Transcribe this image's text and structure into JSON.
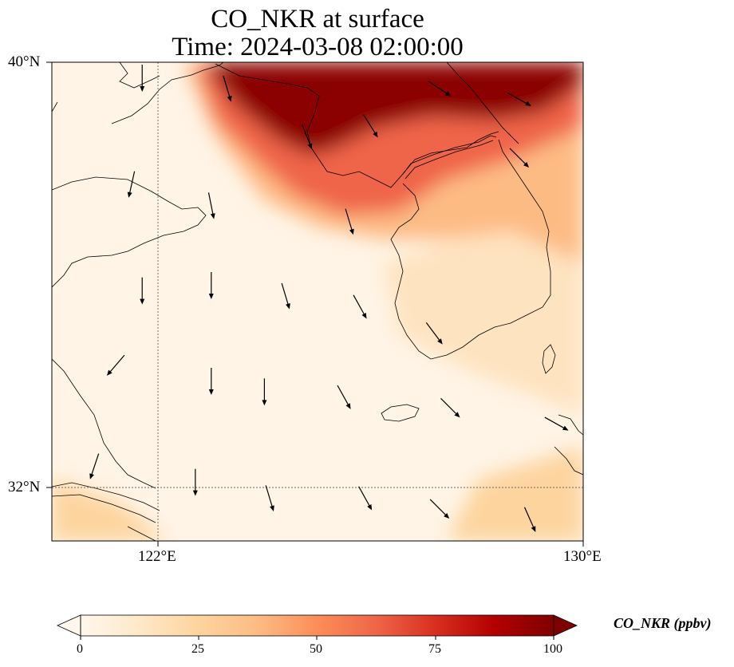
{
  "title": {
    "line1": "CO_NKR at surface",
    "line2": "Time: 2024-03-08 02:00:00"
  },
  "axes": {
    "lat_ticks": [
      "40°N",
      "32°N"
    ],
    "lon_ticks": [
      "122°E",
      "130°E"
    ],
    "lat_range": [
      31,
      40
    ],
    "lon_range": [
      120,
      130
    ],
    "gridlines": "dotted at 122°E and 32°N"
  },
  "colorbar": {
    "label": "CO_NKR (ppbv)",
    "ticks": [
      "0",
      "25",
      "50",
      "75",
      "100"
    ],
    "range": [
      0,
      100
    ],
    "extend": "both",
    "colormap": "OrRd",
    "stops": [
      "#fff7ec",
      "#fee8c8",
      "#fdd49e",
      "#fdbb84",
      "#fc8d59",
      "#ef6548",
      "#d7301f",
      "#b30000",
      "#7f0000"
    ]
  },
  "colors": {
    "coastline": "#000000",
    "wind_arrow": "#000000",
    "high_conc": "#7f0000",
    "background_field": "#fff4e6"
  },
  "chart_data": {
    "type": "heatmap",
    "variable": "CO_NKR",
    "units": "ppbv",
    "level": "surface",
    "time": "2024-03-08 02:00:00",
    "regions": [
      {
        "lon": [
          122.8,
          130
        ],
        "lat": [
          37.5,
          40
        ],
        "value": 100
      },
      {
        "lon": [
          124,
          128
        ],
        "lat": [
          36.5,
          38.5
        ],
        "value": 60
      },
      {
        "lon": [
          127,
          130
        ],
        "lat": [
          35,
          38
        ],
        "value": 30
      },
      {
        "lon": [
          120,
          130
        ],
        "lat": [
          31,
          36
        ],
        "value": 8
      },
      {
        "lon": [
          120,
          122.5
        ],
        "lat": [
          31,
          32.5
        ],
        "value": 25
      },
      {
        "lon": [
          128,
          130
        ],
        "lat": [
          31,
          33
        ],
        "value": 25
      }
    ],
    "wind": {
      "prevailing": "north to north-northwest",
      "vectors": [
        {
          "lon": 121.7,
          "lat": 39.7,
          "u": 0.0,
          "v": -1.0
        },
        {
          "lon": 123.3,
          "lat": 39.5,
          "u": 0.3,
          "v": -1.0
        },
        {
          "lon": 124.8,
          "lat": 38.6,
          "u": 0.4,
          "v": -1.0
        },
        {
          "lon": 126.0,
          "lat": 38.8,
          "u": 0.5,
          "v": -0.8
        },
        {
          "lon": 127.3,
          "lat": 39.5,
          "u": 0.9,
          "v": -0.6
        },
        {
          "lon": 128.8,
          "lat": 39.3,
          "u": 0.9,
          "v": -0.5
        },
        {
          "lon": 128.8,
          "lat": 38.2,
          "u": 0.7,
          "v": -0.7
        },
        {
          "lon": 121.5,
          "lat": 37.7,
          "u": -0.2,
          "v": -0.9
        },
        {
          "lon": 123.0,
          "lat": 37.3,
          "u": 0.2,
          "v": -1.0
        },
        {
          "lon": 125.6,
          "lat": 37.0,
          "u": 0.3,
          "v": -1.0
        },
        {
          "lon": 121.7,
          "lat": 35.7,
          "u": 0.0,
          "v": -1.0
        },
        {
          "lon": 123.0,
          "lat": 35.8,
          "u": 0.0,
          "v": -1.0
        },
        {
          "lon": 124.4,
          "lat": 35.6,
          "u": 0.3,
          "v": -1.0
        },
        {
          "lon": 125.8,
          "lat": 35.4,
          "u": 0.5,
          "v": -0.9
        },
        {
          "lon": 127.2,
          "lat": 34.9,
          "u": 0.6,
          "v": -0.8
        },
        {
          "lon": 121.2,
          "lat": 34.3,
          "u": -0.6,
          "v": -0.7
        },
        {
          "lon": 123.0,
          "lat": 34.0,
          "u": 0.0,
          "v": -1.0
        },
        {
          "lon": 124.0,
          "lat": 33.8,
          "u": 0.0,
          "v": -1.0
        },
        {
          "lon": 125.5,
          "lat": 33.7,
          "u": 0.5,
          "v": -0.9
        },
        {
          "lon": 127.5,
          "lat": 33.5,
          "u": 0.7,
          "v": -0.7
        },
        {
          "lon": 129.5,
          "lat": 33.2,
          "u": 0.9,
          "v": -0.5
        },
        {
          "lon": 120.8,
          "lat": 32.4,
          "u": -0.3,
          "v": -0.9
        },
        {
          "lon": 122.7,
          "lat": 32.1,
          "u": 0.0,
          "v": -1.0
        },
        {
          "lon": 124.1,
          "lat": 31.8,
          "u": 0.3,
          "v": -1.0
        },
        {
          "lon": 125.9,
          "lat": 31.8,
          "u": 0.5,
          "v": -0.9
        },
        {
          "lon": 127.3,
          "lat": 31.6,
          "u": 0.7,
          "v": -0.7
        },
        {
          "lon": 129.0,
          "lat": 31.4,
          "u": 0.4,
          "v": -0.9
        }
      ]
    }
  }
}
